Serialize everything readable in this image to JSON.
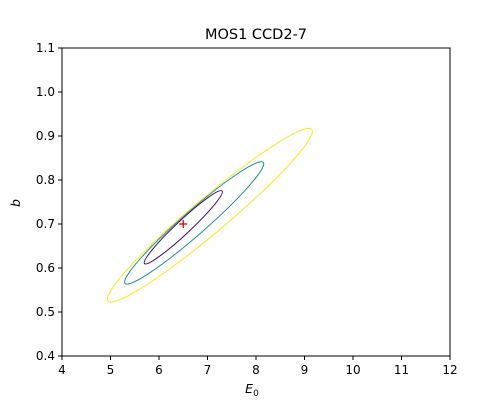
{
  "chart_data": {
    "type": "contour",
    "title": "MOS1 CCD2-7",
    "xlabel": "E",
    "xlabel_sub": "0",
    "ylabel": "b",
    "xlim": [
      4,
      12
    ],
    "ylim": [
      0.4,
      1.1
    ],
    "xticks": [
      "4",
      "5",
      "6",
      "7",
      "8",
      "9",
      "10",
      "11",
      "12"
    ],
    "yticks": [
      "0.4",
      "0.5",
      "0.6",
      "0.7",
      "0.8",
      "0.9",
      "1.0",
      "1.1"
    ],
    "grid": false,
    "best_fit": {
      "x": 6.5,
      "y": 0.7,
      "marker": "+",
      "color": "#e8000b"
    },
    "contours": [
      {
        "level": "inner",
        "color": "#3b0f70",
        "x_range": [
          5.7,
          7.3
        ],
        "y_range": [
          0.61,
          0.775
        ]
      },
      {
        "level": "middle",
        "color": "#21918c",
        "x_range": [
          5.3,
          8.15
        ],
        "y_range": [
          0.565,
          0.84
        ]
      },
      {
        "level": "outer",
        "color": "#fde725",
        "x_range": [
          4.95,
          9.15
        ],
        "y_range": [
          0.525,
          0.915
        ]
      }
    ]
  }
}
